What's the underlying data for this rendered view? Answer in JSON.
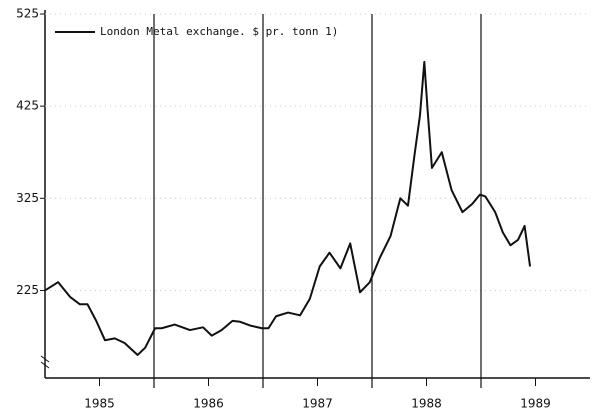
{
  "chart_data": {
    "type": "line",
    "series": [
      {
        "name": "London Metal exchange.  $ pr. tonn 1)",
        "color": "#111111",
        "x": [
          1985.0,
          1985.12,
          1985.23,
          1985.32,
          1985.39,
          1985.47,
          1985.55,
          1985.64,
          1985.73,
          1985.85,
          1985.92,
          1986.01,
          1986.07,
          1986.19,
          1986.33,
          1986.45,
          1986.53,
          1986.62,
          1986.72,
          1986.79,
          1986.88,
          1986.99,
          1987.05,
          1987.12,
          1987.23,
          1987.34,
          1987.43,
          1987.52,
          1987.61,
          1987.71,
          1987.8,
          1987.89,
          1987.98,
          1988.07,
          1988.17,
          1988.26,
          1988.33,
          1988.39,
          1988.44,
          1988.48,
          1988.51,
          1988.55,
          1988.64,
          1988.73,
          1988.83,
          1988.92,
          1988.99,
          1989.04,
          1989.13,
          1989.2,
          1989.27,
          1989.34,
          1989.4,
          1989.45
        ],
        "values": [
          225,
          234,
          218,
          210,
          210,
          192,
          171,
          173,
          168,
          155,
          163,
          184,
          184,
          188,
          182,
          185,
          176,
          182,
          192,
          191,
          187,
          184,
          184,
          197,
          201,
          198,
          216,
          251,
          266,
          249,
          276,
          223,
          234,
          260,
          284,
          325,
          317,
          372,
          415,
          473,
          421,
          358,
          375,
          334,
          310,
          319,
          329,
          327,
          310,
          288,
          274,
          280,
          295,
          251
        ]
      }
    ],
    "xlim": [
      1985,
      1990
    ],
    "xticks": [
      {
        "value": 1985.5,
        "label": "1985"
      },
      {
        "value": 1986.5,
        "label": "1986"
      },
      {
        "value": 1987.5,
        "label": "1987"
      },
      {
        "value": 1988.5,
        "label": "1988"
      },
      {
        "value": 1989.5,
        "label": "1989"
      }
    ],
    "xgrid": [
      1986,
      1987,
      1988,
      1989
    ],
    "ylim": [
      130,
      525
    ],
    "yticks": [
      225,
      325,
      425,
      525
    ]
  }
}
